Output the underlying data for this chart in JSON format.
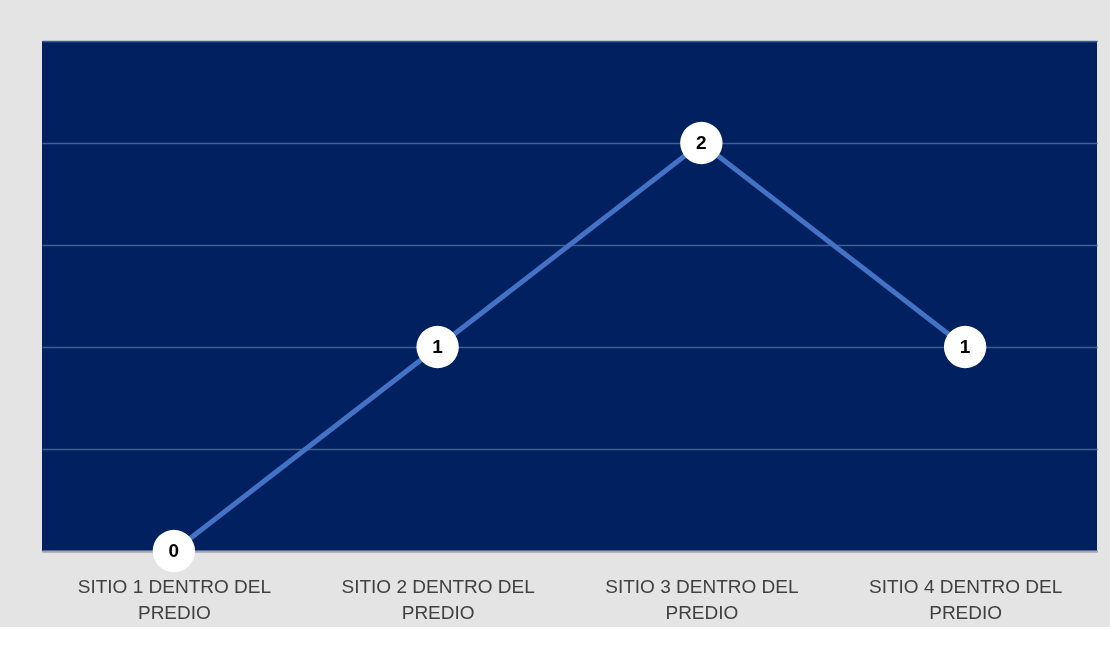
{
  "chart_data": {
    "type": "line",
    "categories": [
      "SITIO 1 DENTRO DEL PREDIO",
      "SITIO 2 DENTRO DEL PREDIO",
      "SITIO 3 DENTRO DEL PREDIO",
      "SITIO 4 DENTRO DEL PREDIO"
    ],
    "series": [
      {
        "color": "#4472c4",
        "values": [
          0,
          1,
          2,
          1
        ]
      }
    ],
    "ylim": [
      0,
      2.5
    ],
    "yticks": [
      {
        "value": 0,
        "label": null
      },
      {
        "value": 0.5,
        "label": null
      },
      {
        "value": 1,
        "label": null
      },
      {
        "value": 1.5,
        "label": null
      },
      {
        "value": 2,
        "label": null
      },
      {
        "value": 2.5,
        "label": null
      }
    ],
    "grid": "y",
    "tick_labels": "x",
    "data_labels": true,
    "marker": "circle",
    "line_style": "solid"
  }
}
